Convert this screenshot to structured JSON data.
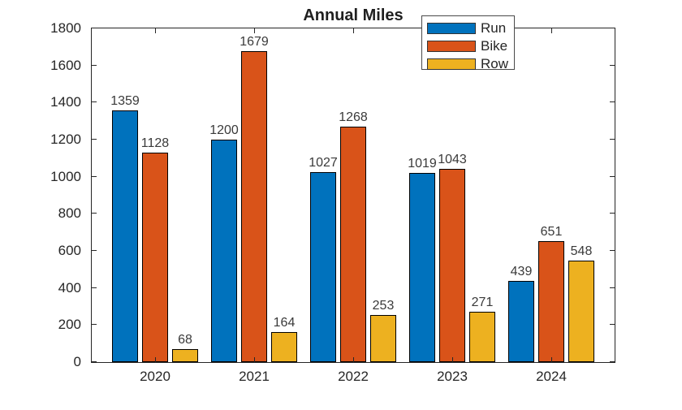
{
  "chart_data": {
    "type": "bar",
    "title": "Annual Miles",
    "categories": [
      "2020",
      "2021",
      "2022",
      "2023",
      "2024"
    ],
    "series": [
      {
        "name": "Run",
        "color": "#0072BD",
        "values": [
          1359,
          1200,
          1027,
          1019,
          439
        ]
      },
      {
        "name": "Bike",
        "color": "#D95319",
        "values": [
          1128,
          1679,
          1268,
          1043,
          651
        ]
      },
      {
        "name": "Row",
        "color": "#EDB120",
        "values": [
          68,
          164,
          253,
          271,
          548
        ]
      }
    ],
    "ylim": [
      0,
      1800
    ],
    "yticks": [
      0,
      200,
      400,
      600,
      800,
      1000,
      1200,
      1400,
      1600,
      1800
    ],
    "xlabel": "",
    "ylabel": "",
    "grid": false,
    "bar_labels_visible": true,
    "legend": {
      "position": "northeast",
      "entries": [
        "Run",
        "Bike",
        "Row"
      ]
    },
    "colors": {
      "axis": "#262626",
      "bar_edge": "#000000",
      "value_label": "#3a3a3a",
      "background": "#ffffff",
      "legend_border": "#4a4a4a"
    }
  }
}
